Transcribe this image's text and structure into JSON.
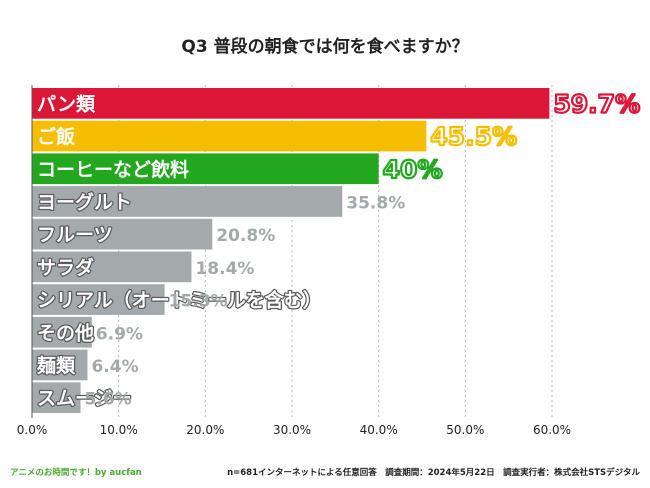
{
  "chart_data": {
    "type": "bar",
    "orientation": "horizontal",
    "title": "Q3 普段の朝食では何を食べますか？",
    "categories": [
      "パン類",
      "ご飯",
      "コーヒーなど飲料",
      "ヨーグルト",
      "フルーツ",
      "サラダ",
      "シリアル（オートミールを含む）",
      "その他",
      "麺類",
      "スムージー"
    ],
    "values": [
      59.7,
      45.5,
      40,
      35.8,
      20.8,
      18.4,
      15.3,
      6.9,
      6.4,
      5.6
    ],
    "value_labels": [
      "59.7%",
      "45.5%",
      "40%",
      "35.8%",
      "20.8%",
      "18.4%",
      "15.3%",
      "6.9%",
      "6.4%",
      "5.6%"
    ],
    "bar_colors": [
      "#dc1637",
      "#f6be00",
      "#22a71e",
      "#a4aaab",
      "#a4aaab",
      "#a4aaab",
      "#a4aaab",
      "#a4aaab",
      "#a4aaab",
      "#a4aaab"
    ],
    "highlight_top": 3,
    "x_ticks": [
      0,
      10,
      20,
      30,
      40,
      50,
      60
    ],
    "x_tick_labels": [
      "0.0%",
      "10.0%",
      "20.0%",
      "30.0%",
      "40.0%",
      "50.0%",
      "60.0%"
    ],
    "xlim": [
      0,
      60
    ],
    "xlabel": "",
    "ylabel": "",
    "grid": "vertical dotted"
  },
  "footer": {
    "left": "アニメのお時間です！by aucfan",
    "right": "n=681インターネットによる任意回答　調査期間：2024年5月22日　調査実行者：株式会社STSデジタル"
  }
}
